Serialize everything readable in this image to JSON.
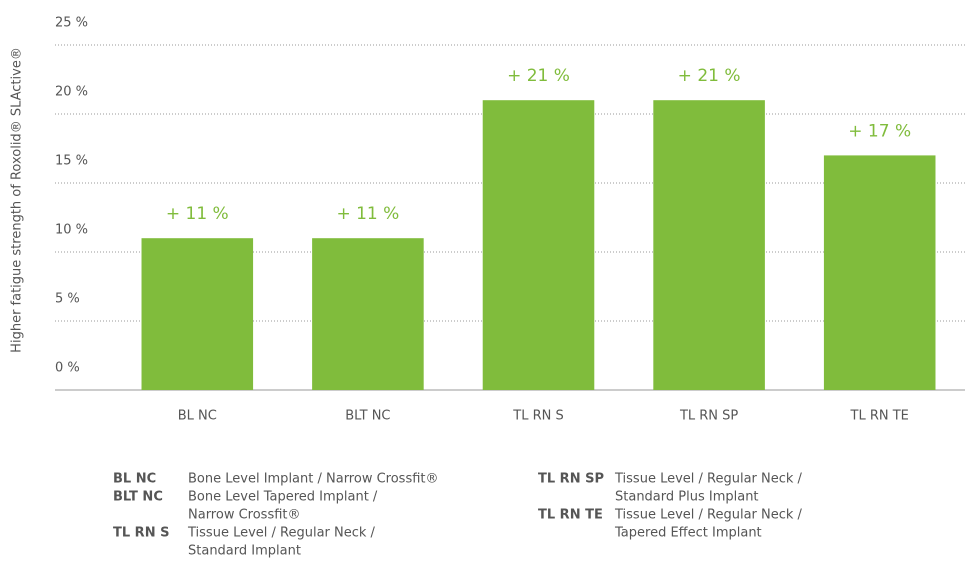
{
  "chart_data": {
    "type": "bar",
    "y_label": "Higher fatigue strength of Roxolid® SLActive®",
    "categories": [
      "BL NC",
      "BLT NC",
      "TL RN S",
      "TL RN SP",
      "TL RN TE"
    ],
    "values": [
      11,
      11,
      21,
      21,
      17
    ],
    "value_labels": [
      "+ 11 %",
      "+ 11 %",
      "+ 21 %",
      "+ 21 %",
      "+ 17 %"
    ],
    "color": "#80bc3c",
    "ylim": [
      0,
      25
    ],
    "yticks": [
      {
        "value": 0,
        "label": "0 %"
      },
      {
        "value": 5,
        "label": "5 %"
      },
      {
        "value": 10,
        "label": "10 %"
      },
      {
        "value": 15,
        "label": "15 %"
      },
      {
        "value": 20,
        "label": "20 %"
      },
      {
        "value": 25,
        "label": "25 %"
      }
    ],
    "grid": true
  },
  "notes": [
    {
      "abbr": "BL NC",
      "lines": [
        "Bone Level Implant / Narrow Crossfit®"
      ]
    },
    {
      "abbr": "BLT NC",
      "lines": [
        "Bone Level Tapered Implant /",
        "Narrow Crossfit®"
      ]
    },
    {
      "abbr": "TL RN S",
      "lines": [
        "Tissue Level / Regular Neck /",
        "Standard Implant"
      ]
    },
    {
      "abbr": "TL RN SP",
      "lines": [
        "Tissue Level / Regular Neck /",
        "Standard Plus Implant"
      ]
    },
    {
      "abbr": "TL RN TE",
      "lines": [
        "Tissue Level / Regular Neck /",
        "Tapered Effect Implant"
      ]
    }
  ]
}
